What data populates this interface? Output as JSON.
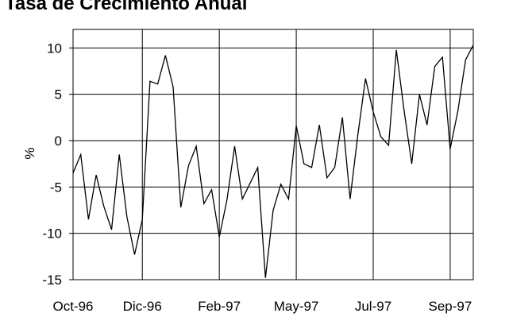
{
  "chart_data": {
    "type": "line",
    "title": "Tasa de Crecimiento Anual",
    "ylabel": "%",
    "xlabel": "",
    "ylim": [
      -15,
      12
    ],
    "yticks": [
      10,
      5,
      0,
      -5,
      -10,
      -15
    ],
    "grid": true,
    "legend": "none",
    "xticks": [
      {
        "label": "Oct-96",
        "index": 0
      },
      {
        "label": "Dic-96",
        "index": 9
      },
      {
        "label": "Feb-97",
        "index": 19
      },
      {
        "label": "May-97",
        "index": 29
      },
      {
        "label": "Jul-97",
        "index": 39
      },
      {
        "label": "Sep-97",
        "index": 49
      }
    ],
    "vgrid_indices": [
      9,
      19,
      29,
      39,
      49
    ],
    "series": [
      {
        "color": "#000000",
        "values": [
          -3.5,
          -1.5,
          -8.5,
          -3.7,
          -7.1,
          -9.6,
          -1.5,
          -8.2,
          -12.3,
          -8.5,
          6.4,
          6.1,
          9.2,
          5.8,
          -7.2,
          -2.7,
          -0.6,
          -6.8,
          -5.3,
          -10.4,
          -6.4,
          -0.6,
          -6.3,
          -4.6,
          -2.9,
          -14.8,
          -7.5,
          -4.7,
          -6.3,
          1.6,
          -2.5,
          -2.9,
          1.7,
          -4.0,
          -2.9,
          2.5,
          -6.3,
          0.6,
          6.7,
          3.1,
          0.4,
          -0.5,
          9.8,
          3.3,
          -2.5,
          5.0,
          1.7,
          8.0,
          9.0,
          -0.9,
          3.2,
          8.7,
          10.3
        ]
      }
    ]
  }
}
